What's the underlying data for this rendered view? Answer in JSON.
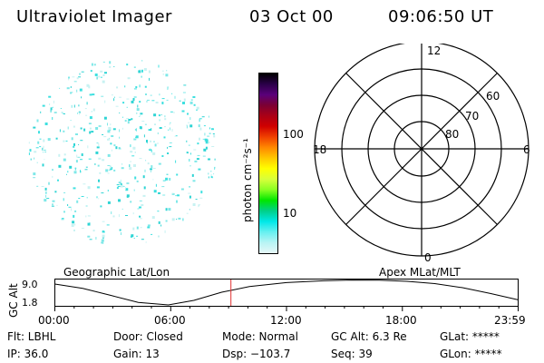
{
  "header": {
    "instrument": "Ultraviolet Imager",
    "date": "03 Oct 00",
    "time": "09:06:50 UT"
  },
  "colorbar": {
    "axis_label": "photon cm⁻²s⁻¹",
    "ticks": [
      {
        "label": "100",
        "value": 100
      },
      {
        "label": "10",
        "value": 10
      }
    ],
    "colors": [
      "#000000",
      "#2a0048",
      "#5a007a",
      "#7b0034",
      "#aa0016",
      "#d00000",
      "#f04000",
      "#ff8800",
      "#ffc800",
      "#ffff00",
      "#d8ff3a",
      "#88ff22",
      "#00e600",
      "#00d08a",
      "#00e8e8",
      "#66f0f0",
      "#b8f4f4",
      "#e6f7f7"
    ]
  },
  "polar_grid": {
    "mlt_labels": {
      "top": "12",
      "left": "18",
      "right": "6",
      "bottom": "0"
    },
    "lat_labels": [
      "60",
      "70",
      "80"
    ]
  },
  "timeline": {
    "left_label": "Geographic Lat/Lon",
    "right_label": "Apex MLat/MLT",
    "y_axis_label": "GC Alt",
    "y_ticks": [
      "9.0",
      "1.8"
    ],
    "x_ticks": [
      "00:00",
      "06:00",
      "12:00",
      "18:00",
      "23:59"
    ],
    "current_time_marker": "09:06:50"
  },
  "status": {
    "flt": "Flt: LBHL",
    "door": "Door: Closed",
    "mode": "Mode: Normal",
    "gc_alt": "GC Alt: 6.3 Re",
    "glat": "GLat: *****",
    "ip": "IP: 36.0",
    "gain": "Gain: 13",
    "dsp": "Dsp: −103.7",
    "seq": "Seq: 39",
    "glon": "GLon: *****"
  },
  "accent_colors": {
    "speckle": "#3fe0e0",
    "marker": "#e03030"
  }
}
